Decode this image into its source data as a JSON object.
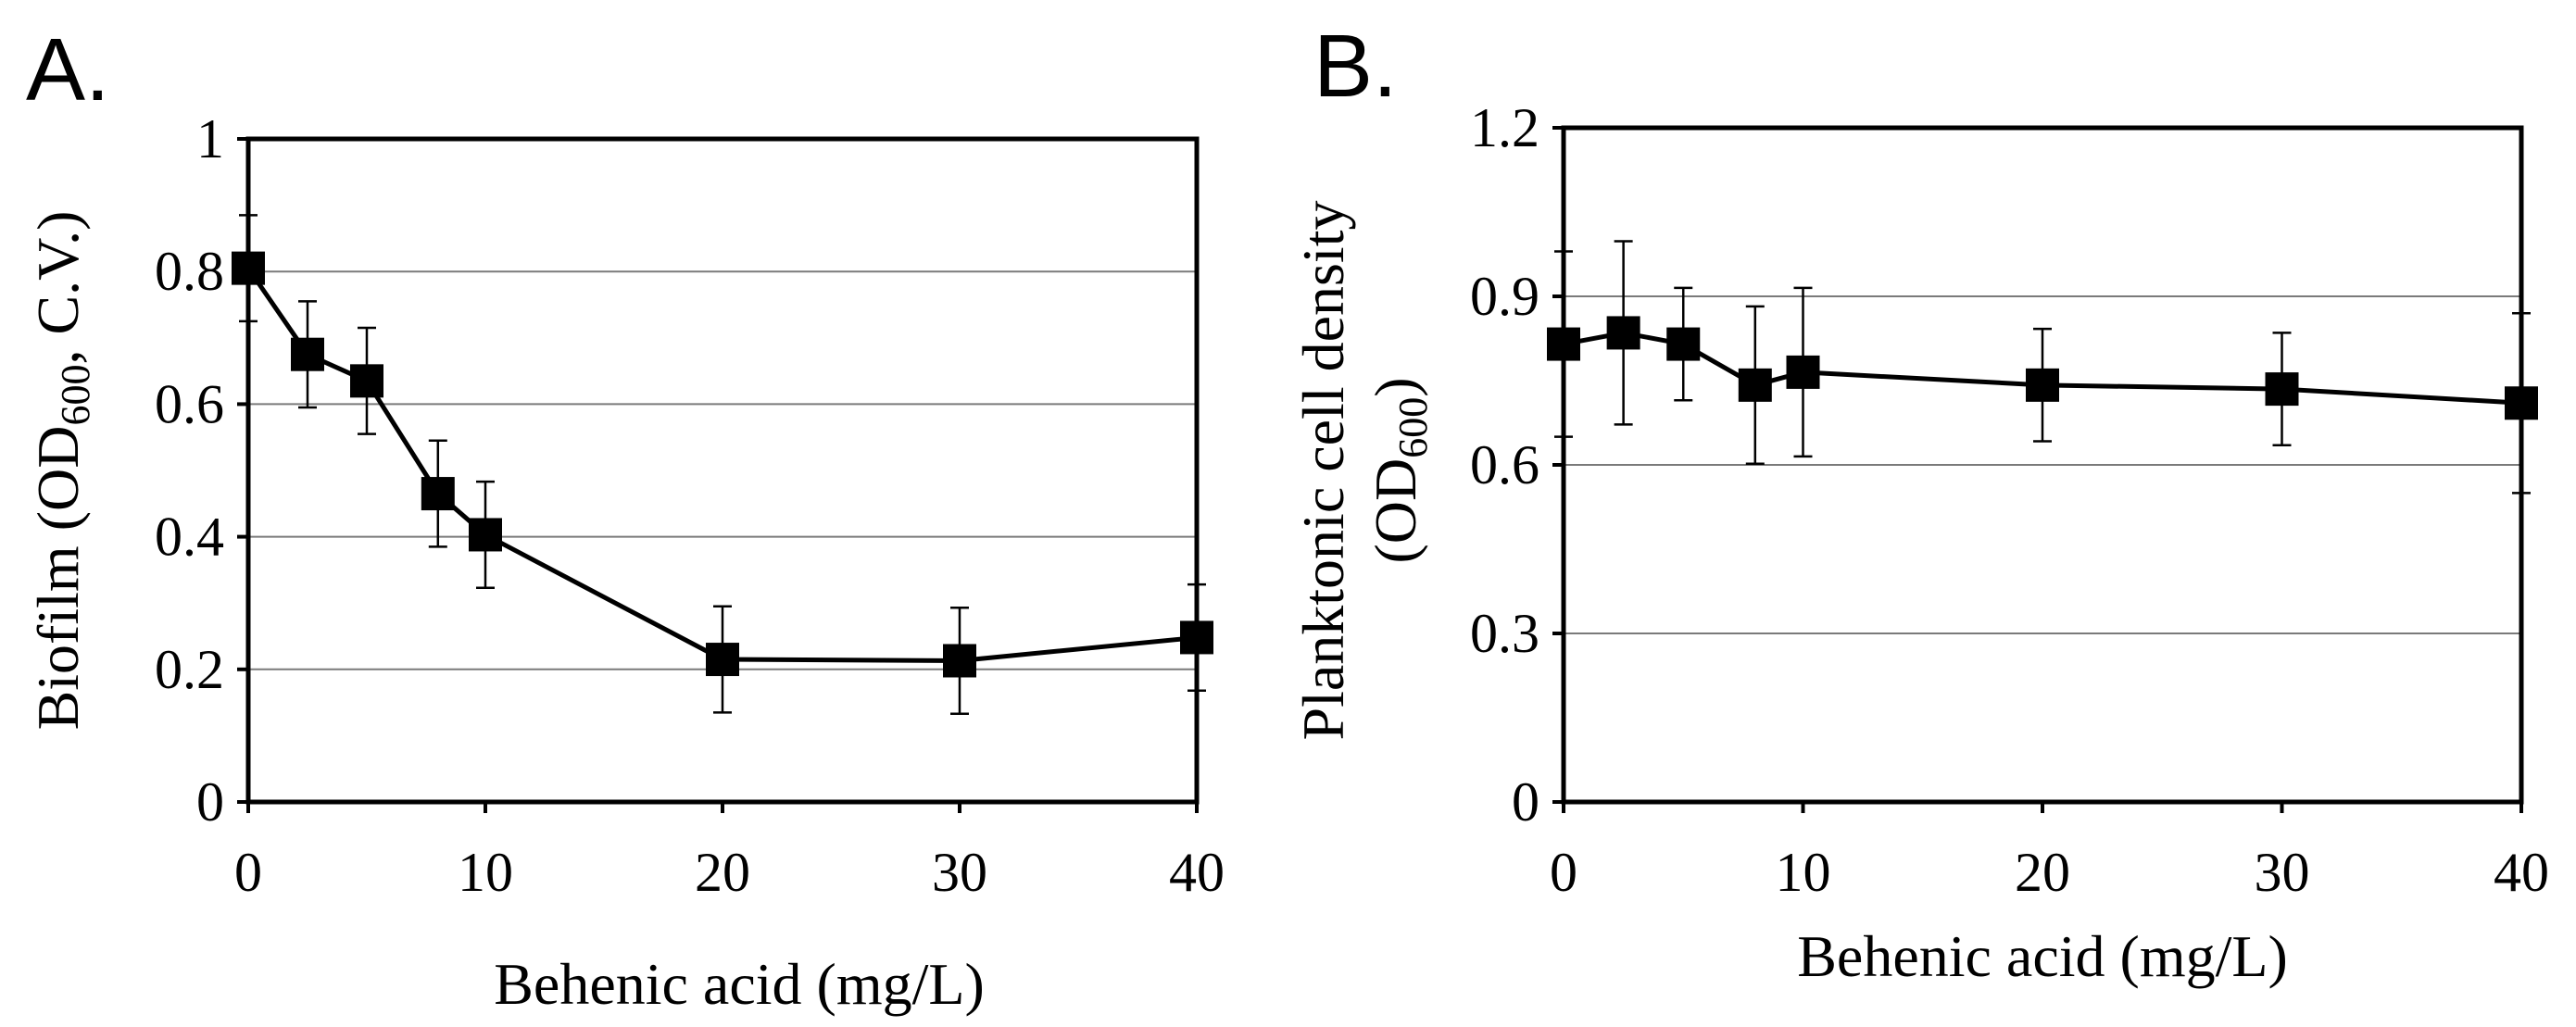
{
  "chart_data": [
    {
      "type": "line",
      "panel": "A.",
      "xlabel": "Behenic acid (mg/L)",
      "ylabel": {
        "prefix": "Biofilm (OD",
        "sub": "600",
        "suffix": ", C.V.)"
      },
      "xlim": [
        0,
        40
      ],
      "ylim": [
        0,
        1
      ],
      "xticks": [
        0,
        10,
        20,
        30,
        40
      ],
      "xtick_labels": [
        "0",
        "10",
        "20",
        "30",
        "40"
      ],
      "yticks": [
        0,
        0.2,
        0.4,
        0.6,
        0.8,
        1
      ],
      "ytick_labels": [
        "0",
        "0.2",
        "0.4",
        "0.6",
        "0.8",
        "1"
      ],
      "grid": "horizontal",
      "series": [
        {
          "name": "Biofilm",
          "marker": "square",
          "x": [
            0,
            2.5,
            5,
            8,
            10,
            20,
            30,
            40
          ],
          "y": [
            0.805,
            0.675,
            0.635,
            0.465,
            0.403,
            0.215,
            0.213,
            0.248
          ],
          "error": [
            0.08,
            0.08,
            0.08,
            0.08,
            0.08,
            0.08,
            0.08,
            0.08
          ]
        }
      ]
    },
    {
      "type": "line",
      "panel": "B.",
      "xlabel": "Behenic acid  (mg/L)",
      "ylabel": {
        "line1": "Planktonic cell density",
        "prefix": "(OD",
        "sub": "600",
        "suffix": ")"
      },
      "xlim": [
        0,
        40
      ],
      "ylim": [
        0,
        1.2
      ],
      "xticks": [
        0,
        10,
        20,
        30,
        40
      ],
      "xtick_labels": [
        "0",
        "10",
        "20",
        "30",
        "40"
      ],
      "yticks": [
        0,
        0.3,
        0.6,
        0.9,
        1.2
      ],
      "ytick_labels": [
        "0",
        "0.3",
        "0.6",
        "0.9",
        "1.2"
      ],
      "grid": "horizontal",
      "series": [
        {
          "name": "Planktonic cell density",
          "marker": "square",
          "x": [
            0,
            2.5,
            5,
            8,
            10,
            20,
            30,
            40
          ],
          "y": [
            0.815,
            0.835,
            0.815,
            0.742,
            0.765,
            0.742,
            0.735,
            0.71
          ],
          "error": [
            0.165,
            0.163,
            0.1,
            0.14,
            0.15,
            0.1,
            0.1,
            0.16
          ]
        }
      ]
    }
  ]
}
